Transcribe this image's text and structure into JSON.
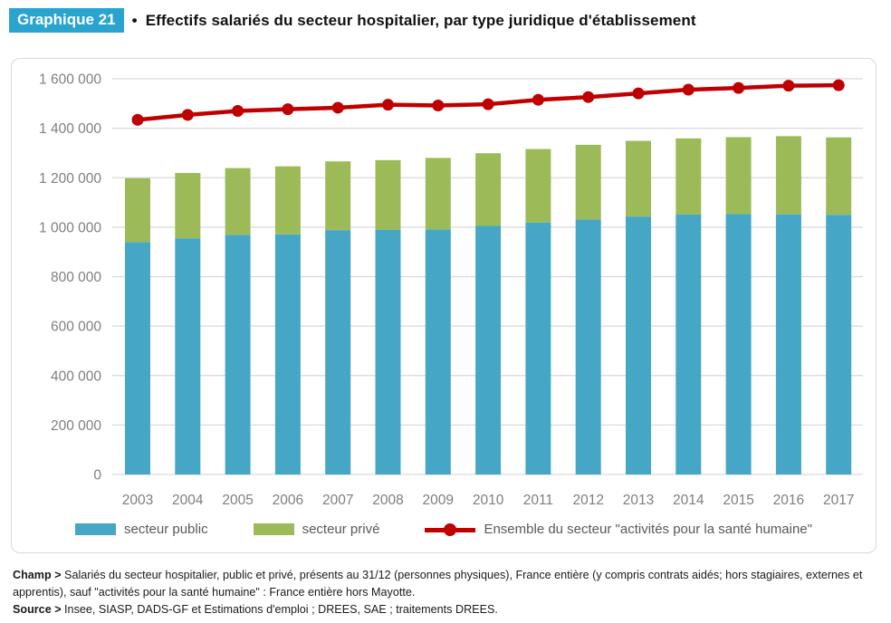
{
  "header": {
    "chip_label": "Graphique 21",
    "bullet": "•",
    "title": "Effectifs salariés du secteur hospitalier, par type juridique d'établissement"
  },
  "colors": {
    "chip_bg": "#29a4ce",
    "grid": "#d9d9d9",
    "axis_text": "#7f7f7f",
    "legend_text": "#595959",
    "box_border": "#d9d9d9"
  },
  "chart_data": {
    "type": "bar",
    "subtype": "stacked-bars-with-line-overlay",
    "title": "Effectifs salariés du secteur hospitalier, par type juridique d'établissement",
    "categories": [
      "2003",
      "2004",
      "2005",
      "2006",
      "2007",
      "2008",
      "2009",
      "2010",
      "2011",
      "2012",
      "2013",
      "2014",
      "2015",
      "2016",
      "2017"
    ],
    "series": [
      {
        "name": "secteur public",
        "type": "bar",
        "color": "#45a6c6",
        "values": [
          940000,
          955000,
          969000,
          971000,
          988000,
          990000,
          991000,
          1005000,
          1019000,
          1031000,
          1043000,
          1051000,
          1053000,
          1052000,
          1050000
        ]
      },
      {
        "name": "secteur privé",
        "type": "bar",
        "color": "#9cbb58",
        "values": [
          258000,
          264000,
          270000,
          275000,
          278000,
          281000,
          289000,
          294000,
          297000,
          302000,
          306000,
          308000,
          311000,
          316000,
          313000
        ]
      },
      {
        "name": "Ensemble du secteur \"activités pour la santé humaine\"",
        "type": "line",
        "color": "#c00000",
        "values": [
          1434000,
          1454000,
          1470000,
          1477000,
          1483000,
          1495000,
          1492000,
          1497000,
          1515000,
          1526000,
          1541000,
          1556000,
          1563000,
          1572000,
          1574000
        ]
      }
    ],
    "ylim": [
      0,
      1600000
    ],
    "ytick_step": 200000,
    "ytick_labels": [
      "0",
      "200 000",
      "400 000",
      "600 000",
      "800 000",
      "1 000 000",
      "1 200 000",
      "1 400 000",
      "1 600 000"
    ],
    "grid": true,
    "legend_position": "bottom"
  },
  "footnotes": {
    "champ_label": "Champ >",
    "champ_text": " Salariés du secteur hospitalier, public et privé, présents au 31/12 (personnes physiques), France entière (y compris contrats aidés; hors stagiaires, externes et apprentis), sauf \"activités pour la santé humaine\" : France entière hors Mayotte.",
    "source_label": "Source >",
    "source_text": " Insee, SIASP, DADS-GF et Estimations d'emploi ; DREES, SAE ; traitements DREES."
  }
}
